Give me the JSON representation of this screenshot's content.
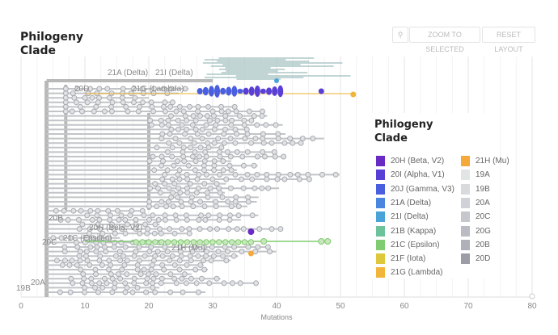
{
  "header": {
    "title_line1": "Philogeny",
    "title_line2": "Clade",
    "search_icon": "magnifier-icon",
    "zoom_selected": "ZOOM TO SELECTED",
    "reset_layout": "RESET LAYOUT"
  },
  "chart_data": {
    "type": "tree",
    "xlabel": "Mutations",
    "xlim": [
      0,
      80
    ],
    "xticks": [
      "0",
      "10",
      "20",
      "30",
      "40",
      "50",
      "60",
      "70",
      "80"
    ],
    "grid": true,
    "clade_labels": [
      "21A (Delta)",
      "21I (Delta)",
      "20D",
      "21G (Lambda)",
      "20B",
      "20H (Beta, V2)",
      "21C (Epsilon)",
      "20C",
      "21H (Mu)",
      "20A",
      "19B"
    ],
    "legend": {
      "title_line1": "Philogeny",
      "title_line2": "Clade",
      "placement": "right",
      "items": [
        {
          "label": "20H (Beta, V2)",
          "color": "#6a2bc4"
        },
        {
          "label": "20I (Alpha, V1)",
          "color": "#5a3fd6"
        },
        {
          "label": "20J (Gamma, V3)",
          "color": "#4a5fe0"
        },
        {
          "label": "21A (Delta)",
          "color": "#4a86e0"
        },
        {
          "label": "21I (Delta)",
          "color": "#4aa3d8"
        },
        {
          "label": "21B (Kappa)",
          "color": "#6cc39a"
        },
        {
          "label": "21C (Epsilon)",
          "color": "#80cc70"
        },
        {
          "label": "21F (Iota)",
          "color": "#dcc83a"
        },
        {
          "label": "21G (Lambda)",
          "color": "#f0b53a"
        },
        {
          "label": "21H (Mu)",
          "color": "#f5a93a"
        },
        {
          "label": "19A",
          "color": "#e2e5e6"
        },
        {
          "label": "19B",
          "color": "#d8dbde"
        },
        {
          "label": "20A",
          "color": "#cfd2d6"
        },
        {
          "label": "20C",
          "color": "#c4c7cc"
        },
        {
          "label": "20G",
          "color": "#b9bcc2"
        },
        {
          "label": "20B",
          "color": "#aeb1b8"
        },
        {
          "label": "20D",
          "color": "#9a9da5"
        }
      ]
    }
  }
}
